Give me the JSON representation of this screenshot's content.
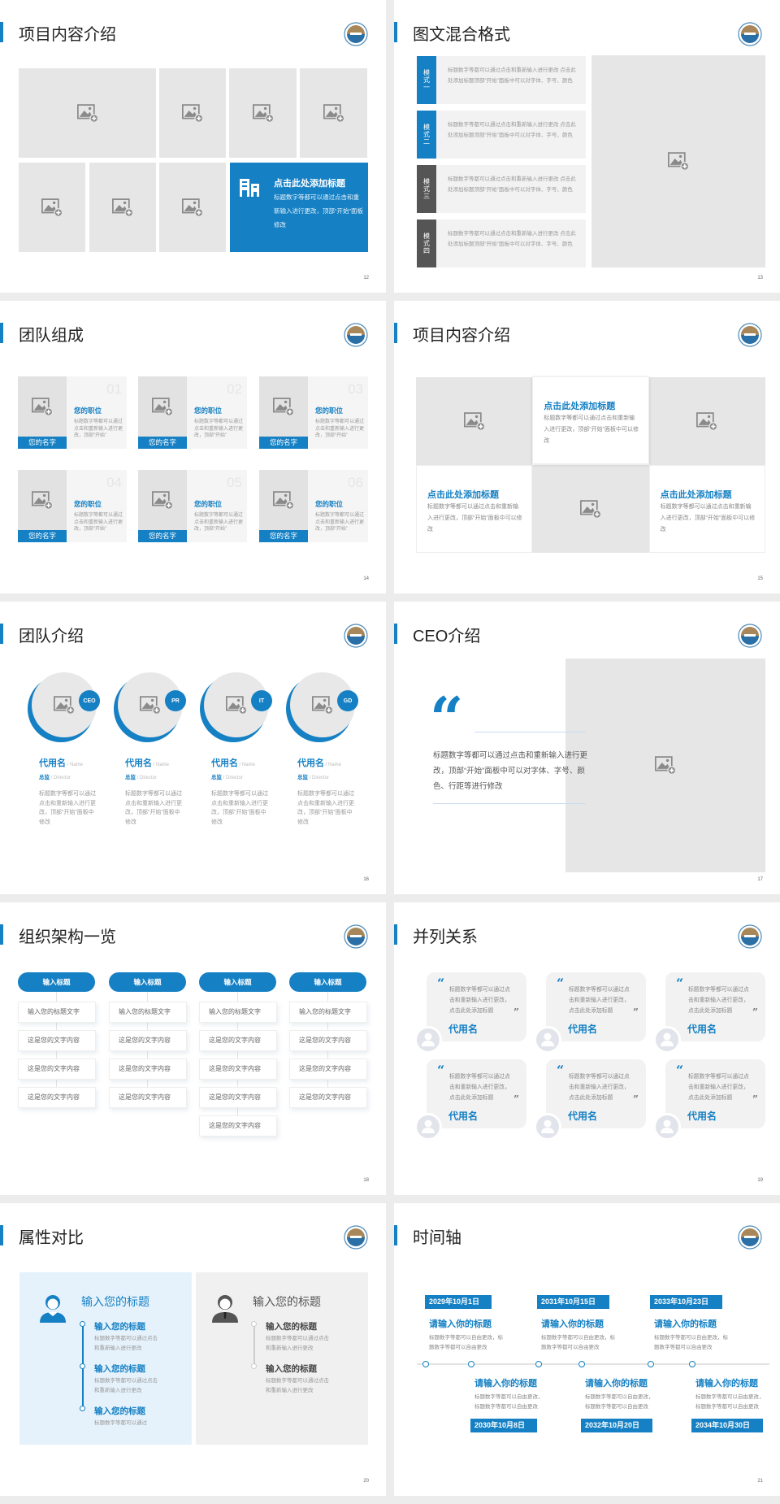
{
  "colors": {
    "accent": "#1580c4",
    "dark": "#555555",
    "placeholder": "#e6e6e6",
    "panel_light_blue": "#e6f2fb",
    "panel_gray": "#f0f0f0"
  },
  "icons": {
    "placeholder": "image-add-icon",
    "logo": "university-seal-logo",
    "feature": "building-icon",
    "avatar": "user-avatar-icon"
  },
  "slides": [
    {
      "id": "s12",
      "title": "项目内容介绍",
      "page": "12",
      "feature": {
        "title": "点击此处添加标题",
        "text": "标题数字等都可以通过点击和重新输入进行更改，顶部“开始”面板修改"
      }
    },
    {
      "id": "s13",
      "title": "图文混合格式",
      "page": "13",
      "modules": [
        {
          "label": "模式一",
          "color": "#1580c4",
          "text": "标题数字等都可以通过点击和重新输入进行更改 点击此处添加标题顶部“开始”面板中可以对字体、字号、颜色"
        },
        {
          "label": "模式二",
          "color": "#1580c4",
          "text": "标题数字等都可以通过点击和重新输入进行更改 点击此处添加标题顶部“开始”面板中可以对字体、字号、颜色"
        },
        {
          "label": "模式三",
          "color": "#555555",
          "text": "标题数字等都可以通过点击和重新输入进行更改 点击此处添加标题顶部“开始”面板中可以对字体、字号、颜色"
        },
        {
          "label": "模式四",
          "color": "#555555",
          "text": "标题数字等都可以通过点击和重新输入进行更改 点击此处添加标题顶部“开始”面板中可以对字体、字号、颜色"
        }
      ]
    },
    {
      "id": "s14",
      "title": "团队组成",
      "page": "14",
      "members": [
        {
          "num": "01",
          "position": "您的职位",
          "text": "标题数字等都可以通过点击和重新输入进行更改，顶部“开始”",
          "name": "您的名字"
        },
        {
          "num": "02",
          "position": "您的职位",
          "text": "标题数字等都可以通过点击和重新输入进行更改，顶部“开始”",
          "name": "您的名字"
        },
        {
          "num": "03",
          "position": "您的职位",
          "text": "标题数字等都可以通过点击和重新输入进行更改，顶部“开始”",
          "name": "您的名字"
        },
        {
          "num": "04",
          "position": "您的职位",
          "text": "标题数字等都可以通过点击和重新输入进行更改，顶部“开始”",
          "name": "您的名字"
        },
        {
          "num": "05",
          "position": "您的职位",
          "text": "标题数字等都可以通过点击和重新输入进行更改，顶部“开始”",
          "name": "您的名字"
        },
        {
          "num": "06",
          "position": "您的职位",
          "text": "标题数字等都可以通过点击和重新输入进行更改，顶部“开始”",
          "name": "您的名字"
        }
      ]
    },
    {
      "id": "s15",
      "title": "项目内容介绍",
      "page": "15",
      "blocks": [
        {
          "title": "点击此处添加标题",
          "text": "标题数字等都可以通过点击和重新输入进行更改，顶部“开始”面板中可以修改"
        },
        {
          "title": "点击此处添加标题",
          "text": "标题数字等都可以通过点击和重新输入进行更改，顶部“开始”面板中可以修改"
        },
        {
          "title": "点击此处添加标题",
          "text": "标题数字等都可以通过点击和重新输入进行更改，顶部“开始”面板中可以修改"
        }
      ]
    },
    {
      "id": "s16",
      "title": "团队介绍",
      "page": "16",
      "members": [
        {
          "badge": "CEO",
          "name": "代用名",
          "name_en": " / Name",
          "role": "总监",
          "role_en": " /  Director",
          "text": "标题数字等都可以通过点击和重新输入进行更改，顶部“开始”面板中修改"
        },
        {
          "badge": "PR",
          "name": "代用名",
          "name_en": " / Name",
          "role": "总监",
          "role_en": " /  Director",
          "text": "标题数字等都可以通过点击和重新输入进行更改，顶部“开始”面板中修改"
        },
        {
          "badge": "IT",
          "name": "代用名",
          "name_en": " / Name",
          "role": "总监",
          "role_en": " /  Director",
          "text": "标题数字等都可以通过点击和重新输入进行更改，顶部“开始”面板中修改"
        },
        {
          "badge": "GD",
          "name": "代用名",
          "name_en": " / Name",
          "role": "总监",
          "role_en": " /  Director",
          "text": "标题数字等都可以通过点击和重新输入进行更改，顶部“开始”面板中修改"
        }
      ]
    },
    {
      "id": "s17",
      "title": "CEO介绍",
      "page": "17",
      "quote_mark": "“",
      "text": "标题数字等都可以通过点击和重新输入进行更改，顶部“开始”面板中可以对字体、字号、颜色、行距等进行修改"
    },
    {
      "id": "s18",
      "title": "组织架构一览",
      "page": "18",
      "columns": [
        {
          "header": "输入标题",
          "items": [
            "输入您的标题文字",
            "这是您的文字内容",
            "这是您的文字内容",
            "这是您的文字内容"
          ]
        },
        {
          "header": "输入标题",
          "items": [
            "输入您的标题文字",
            "这是您的文字内容",
            "这是您的文字内容",
            "这是您的文字内容"
          ]
        },
        {
          "header": "输入标题",
          "items": [
            "输入您的标题文字",
            "这是您的文字内容",
            "这是您的文字内容",
            "这是您的文字内容",
            "这是您的文字内容"
          ]
        },
        {
          "header": "输入标题",
          "items": [
            "输入您的标题文字",
            "这是您的文字内容",
            "这是您的文字内容",
            "这是您的文字内容"
          ]
        }
      ]
    },
    {
      "id": "s19",
      "title": "并列关系",
      "page": "19",
      "open_quote": "“",
      "close_quote": "”",
      "cards": [
        {
          "text": "标题数字等都可以通过点击和重新输入进行更改，点击此处添加标题",
          "name": "代用名"
        },
        {
          "text": "标题数字等都可以通过点击和重新输入进行更改，点击此处添加标题",
          "name": "代用名"
        },
        {
          "text": "标题数字等都可以通过点击和重新输入进行更改，点击此处添加标题",
          "name": "代用名"
        },
        {
          "text": "标题数字等都可以通过点击和重新输入进行更改，点击此处添加标题",
          "name": "代用名"
        },
        {
          "text": "标题数字等都可以通过点击和重新输入进行更改，点击此处添加标题",
          "name": "代用名"
        },
        {
          "text": "标题数字等都可以通过点击和重新输入进行更改，点击此处添加标题",
          "name": "代用名"
        }
      ]
    },
    {
      "id": "s20",
      "title": "属性对比",
      "page": "20",
      "left": {
        "title": "输入您的标题",
        "items": [
          {
            "heading": "输入您的标题",
            "text": "标题数字等都可以通过点击和重新输入进行更改"
          },
          {
            "heading": "输入您的标题",
            "text": "标题数字等都可以通过点击和重新输入进行更改"
          },
          {
            "heading": "输入您的标题",
            "text": "标题数字等都可以通过"
          }
        ]
      },
      "right": {
        "title": "输入您的标题",
        "items": [
          {
            "heading": "输入您的标题",
            "text": "标题数字等都可以通过点击和重新输入进行更改"
          },
          {
            "heading": "输入您的标题",
            "text": "标题数字等都可以通过点击和重新输入进行更改"
          }
        ]
      }
    },
    {
      "id": "s21",
      "title": "时间轴",
      "page": "21",
      "top_events": [
        {
          "date": "2029年10月1日",
          "title": "请输入你的标题",
          "text": "标题数字等都可以自由更改，标题数字等都可以自由更改"
        },
        {
          "date": "2031年10月15日",
          "title": "请输入你的标题",
          "text": "标题数字等都可以自由更改，标题数字等都可以自由更改"
        },
        {
          "date": "2033年10月23日",
          "title": "请输入你的标题",
          "text": "标题数字等都可以自由更改，标题数字等都可以自由更改"
        }
      ],
      "bottom_events": [
        {
          "date": "2030年10月8日",
          "title": "请输入你的标题",
          "text": "标题数字等都可以自由更改，标题数字等都可以自由更改"
        },
        {
          "date": "2032年10月20日",
          "title": "请输入你的标题",
          "text": "标题数字等都可以自由更改，标题数字等都可以自由更改"
        },
        {
          "date": "2034年10月30日",
          "title": "请输入你的标题",
          "text": "标题数字等都可以自由更改，标题数字等都可以自由更改"
        }
      ]
    }
  ]
}
